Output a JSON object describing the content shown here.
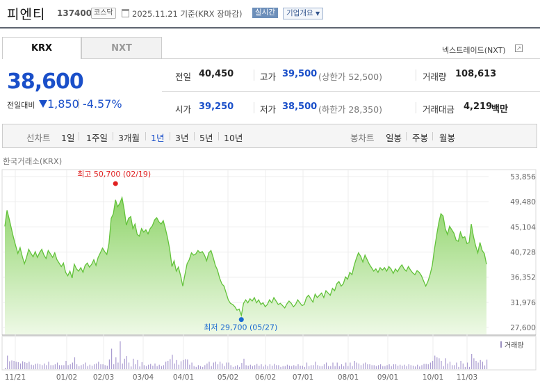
{
  "header": {
    "stock_name": "피엔티",
    "stock_code": "137400",
    "market_badge": "코스닥",
    "date_text": "2025.11.21  기준(KRX 장마감)",
    "realtime_badge": "실시간",
    "company_button": "기업개요"
  },
  "tabs": [
    {
      "label": "KRX",
      "active": true
    },
    {
      "label": "NXT",
      "active": false
    }
  ],
  "nxt_link": "넥스트레이드(NXT)",
  "price": {
    "current": "38,600",
    "prev_label": "전일대비",
    "change": "1,850",
    "change_pct": "-4.57%"
  },
  "stats": {
    "prev_close_label": "전일",
    "prev_close": "40,450",
    "high_label": "고가",
    "high": "39,500",
    "upper_limit": "(상한가 52,500)",
    "volume_label": "거래량",
    "volume": "108,613",
    "open_label": "시가",
    "open": "39,250",
    "low_label": "저가",
    "low": "38,500",
    "lower_limit": "(하한가 28,350)",
    "amount_label": "거래대금",
    "amount": "4,219",
    "amount_unit": "백만"
  },
  "period_bar": {
    "line_title": "선차트",
    "periods": [
      "1일",
      "1주일",
      "3개월",
      "1년",
      "3년",
      "5년",
      "10년"
    ],
    "active_period": "1년",
    "candle_title": "봉차트",
    "candles": [
      "일봉",
      "주봉",
      "월봉"
    ]
  },
  "chart_label": "한국거래소(KRX)",
  "colors": {
    "accent_blue": "#1a4fc9",
    "high_red": "#e02020",
    "low_blue": "#1a6ad0",
    "area_green": "#8fd46a"
  },
  "chart_data": {
    "type": "area",
    "y_ticks": [
      "53,856",
      "49,480",
      "45,104",
      "40,728",
      "36,352",
      "31,976",
      "27,600"
    ],
    "ylim": [
      27600,
      53856
    ],
    "x_ticks": [
      "11/21",
      "01/02",
      "02/03",
      "03/04",
      "04/01",
      "05/02",
      "06/02",
      "07/01",
      "08/01",
      "09/01",
      "10/01",
      "11/03"
    ],
    "high_annotation": "최고 50,700 (02/19)",
    "low_annotation": "최저 29,700 (05/27)",
    "high_point": {
      "index": 51,
      "value": 50700
    },
    "low_point": {
      "index": 109,
      "value": 29700
    },
    "volume_label": "거래량",
    "values": [
      45200,
      48000,
      46500,
      44800,
      43200,
      41800,
      40500,
      41500,
      40000,
      38700,
      39800,
      41200,
      40500,
      39900,
      40800,
      39800,
      40600,
      41200,
      40200,
      39600,
      41000,
      40400,
      39800,
      40600,
      39400,
      38800,
      38200,
      38800,
      37200,
      36600,
      37400,
      36200,
      38600,
      37800,
      37400,
      38000,
      37200,
      38400,
      38800,
      38100,
      38600,
      39400,
      38400,
      39800,
      40600,
      41400,
      40800,
      40300,
      42200,
      46600,
      47400,
      49800,
      48600,
      49200,
      50200,
      48100,
      45400,
      46600,
      46900,
      44800,
      45600,
      43800,
      43500,
      44800,
      44200,
      44600,
      43900,
      44800,
      45300,
      46300,
      46700,
      46000,
      45600,
      46200,
      44800,
      43200,
      41200,
      38200,
      39200,
      37400,
      38100,
      36600,
      34800,
      36800,
      38700,
      39400,
      40600,
      40200,
      40400,
      41000,
      40600,
      40800,
      40200,
      39200,
      40600,
      41000,
      39800,
      38400,
      37600,
      36200,
      35200,
      34800,
      33600,
      32400,
      31800,
      31600,
      31200,
      30600,
      30800,
      29700,
      31800,
      32400,
      31900,
      32600,
      32200,
      32800,
      31900,
      32400,
      31600,
      31900,
      31200,
      31600,
      32400,
      31900,
      32800,
      32200,
      31600,
      31800,
      31400,
      31000,
      31700,
      32200,
      31800,
      31200,
      31600,
      32400,
      31900,
      31400,
      31600,
      32800,
      33200,
      32600,
      32000,
      33400,
      32800,
      33200,
      33600,
      32800,
      34000,
      33600,
      33200,
      34400,
      34000,
      35200,
      35600,
      34800,
      35200,
      36400,
      36000,
      37200,
      36800,
      38400,
      39600,
      40600,
      40000,
      39000,
      40200,
      39400,
      38600,
      38000,
      37400,
      37800,
      37200,
      38000,
      37600,
      38000,
      37400,
      38200,
      37800,
      37000,
      37800,
      37300,
      38000,
      38500,
      37800,
      37400,
      38200,
      37600,
      37100,
      36800,
      37500,
      37200,
      36600,
      35700,
      34800,
      35600,
      36800,
      38400,
      41200,
      43600,
      45800,
      47400,
      47000,
      44800,
      43800,
      45200,
      44600,
      44000,
      42800,
      42600,
      44200,
      43200,
      43400,
      42200,
      42400,
      45600,
      43400,
      41800,
      40600,
      42400,
      41000,
      40450,
      38600
    ]
  }
}
